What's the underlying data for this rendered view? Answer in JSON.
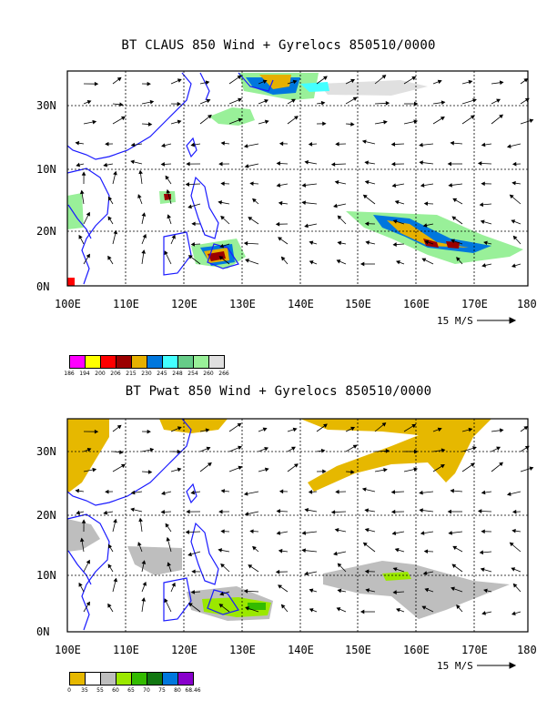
{
  "panels": [
    {
      "id": "claus",
      "title": "BT CLAUS 850 Wind + Gyrelocs 850510/0000",
      "xticks": [
        "100E",
        "110E",
        "120E",
        "130E",
        "140E",
        "150E",
        "160E",
        "170E",
        "180"
      ],
      "yticks": [
        "0N",
        "10N",
        "20N",
        "30N"
      ],
      "scale_label": "15 M/S",
      "legend_colors": [
        "#ff00ff",
        "#ffff00",
        "#ff0000",
        "#9b0000",
        "#e6b000",
        "#0077dd",
        "#44ffff",
        "#66cc88",
        "#99f099",
        "#e0e0e0"
      ],
      "legend_labels": [
        "186",
        "194",
        "200",
        "206",
        "215",
        "230",
        "245",
        "248",
        "254",
        "260",
        "266"
      ]
    },
    {
      "id": "pwat",
      "title": "BT Pwat 850 Wind + Gyrelocs 850510/0000",
      "xticks": [
        "100E",
        "110E",
        "120E",
        "130E",
        "140E",
        "150E",
        "160E",
        "170E",
        "180"
      ],
      "yticks": [
        "0N",
        "10N",
        "20N",
        "30N"
      ],
      "scale_label": "15 M/S",
      "legend_colors": [
        "#e6b800",
        "#ffffff",
        "#bebebe",
        "#9be800",
        "#33bb00",
        "#117711",
        "#0077dd",
        "#8800cc"
      ],
      "legend_labels": [
        "0",
        "35",
        "55",
        "60",
        "65",
        "70",
        "75",
        "80",
        "68.46"
      ]
    }
  ],
  "colors": {
    "coast": "#1a1aff",
    "frame": "#000000"
  }
}
